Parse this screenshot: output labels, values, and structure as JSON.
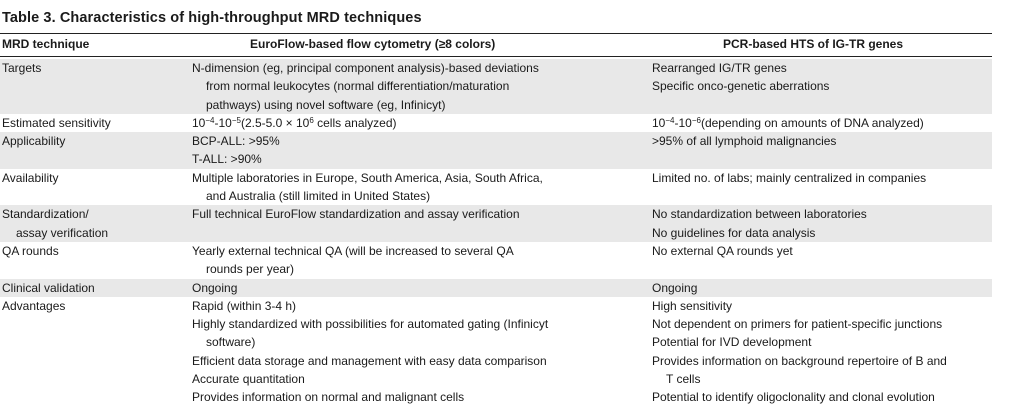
{
  "caption": "Table 3. Characteristics of high-throughput MRD techniques",
  "headers": {
    "c1": "MRD technique",
    "c2": "EuroFlow-based flow cytometry (≥8 colors)",
    "c3": "PCR-based HTS of IG-TR genes"
  },
  "rows": [
    {
      "label": [
        "Targets"
      ],
      "flow": [
        "N-dimension (eg, principal component analysis)-based deviations",
        "from normal leukocytes (normal differentiation/maturation",
        "pathways) using novel software (eg, Infinicyt)"
      ],
      "flow_indent": [
        false,
        true,
        true
      ],
      "pcr": [
        "Rearranged IG/TR genes",
        "Specific onco-genetic aberrations"
      ],
      "pcr_indent": [
        false,
        false
      ],
      "shaded": true
    },
    {
      "label": [
        "Estimated sensitivity"
      ],
      "flow_sens": {
        "base1": "10",
        "exp1": "−4",
        "mid": "-10",
        "exp2": "−5",
        "tail_a": "(2.5-5.0 × 10",
        "exp3": "6",
        "tail_b": " cells analyzed)"
      },
      "pcr_sens": {
        "base1": "10",
        "exp1": "−4",
        "mid": "-10",
        "exp2": "−6",
        "tail": "(depending on amounts of DNA analyzed)"
      },
      "shaded": false
    },
    {
      "label": [
        "Applicability"
      ],
      "flow": [
        "BCP-ALL: >95%",
        "T-ALL: >90%"
      ],
      "flow_indent": [
        false,
        false
      ],
      "pcr": [
        ">95% of all lymphoid malignancies"
      ],
      "pcr_indent": [
        false
      ],
      "shaded": true
    },
    {
      "label": [
        "Availability"
      ],
      "flow": [
        "Multiple laboratories in Europe, South America, Asia, South Africa,",
        "and Australia (still limited in United States)"
      ],
      "flow_indent": [
        false,
        true
      ],
      "pcr": [
        "Limited no. of labs; mainly centralized in companies"
      ],
      "pcr_indent": [
        false
      ],
      "shaded": false
    },
    {
      "label": [
        "Standardization/",
        "assay verification"
      ],
      "label_indent": [
        false,
        true
      ],
      "flow": [
        "Full technical EuroFlow standardization and assay verification"
      ],
      "flow_indent": [
        false
      ],
      "pcr": [
        "No standardization between laboratories",
        "No guidelines for data analysis"
      ],
      "pcr_indent": [
        false,
        false
      ],
      "shaded": true
    },
    {
      "label": [
        "QA rounds"
      ],
      "flow": [
        "Yearly external technical QA (will be increased to several QA",
        "rounds per year)"
      ],
      "flow_indent": [
        false,
        true
      ],
      "pcr": [
        "No external QA rounds yet"
      ],
      "pcr_indent": [
        false
      ],
      "shaded": false
    },
    {
      "label": [
        "Clinical validation"
      ],
      "flow": [
        "Ongoing"
      ],
      "flow_indent": [
        false
      ],
      "pcr": [
        "Ongoing"
      ],
      "pcr_indent": [
        false
      ],
      "shaded": true
    },
    {
      "label": [
        "Advantages"
      ],
      "flow": [
        "Rapid (within 3-4 h)",
        "Highly standardized with possibilities for automated gating (Infinicyt",
        "software)",
        "Efficient data storage and management with easy data comparison",
        "Accurate quantitation",
        "Provides information on normal and malignant cells"
      ],
      "flow_indent": [
        false,
        false,
        true,
        false,
        false,
        false
      ],
      "pcr": [
        "High sensitivity",
        "Not dependent on primers for patient-specific junctions",
        "Potential for IVD development",
        "Provides information on background repertoire of B and",
        "T cells",
        "Potential to identify oligoclonality and clonal evolution"
      ],
      "pcr_indent": [
        false,
        false,
        false,
        false,
        true,
        false
      ],
      "shaded": false
    }
  ]
}
